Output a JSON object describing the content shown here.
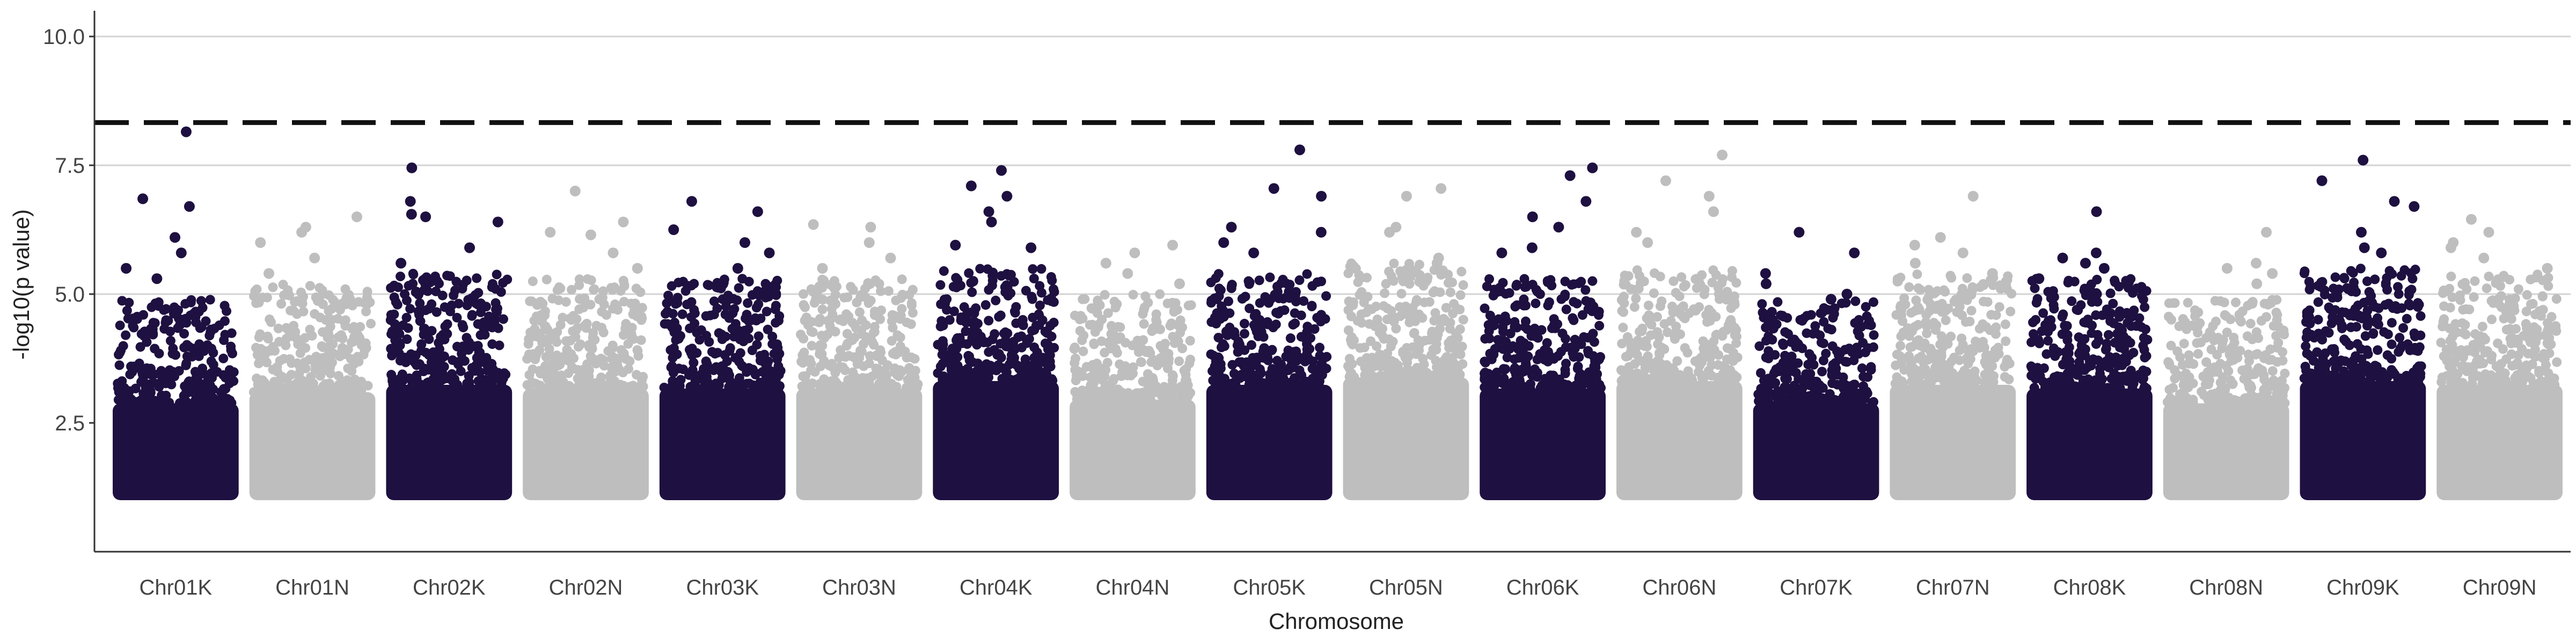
{
  "chart_data": {
    "type": "scatter",
    "subtype": "manhattan",
    "title": "",
    "xlabel": "Chromosome",
    "ylabel": "-log10(p value)",
    "ylim": [
      0.0,
      10.5
    ],
    "yticks": [
      2.5,
      5.0,
      7.5,
      10.0
    ],
    "ytick_labels": [
      "2.5",
      "5.0",
      "7.5",
      "10.0"
    ],
    "grid": "horizontal",
    "threshold": 8.33,
    "colors": {
      "dark": "#1e1040",
      "light": "#bebebe",
      "threshold": "#111111",
      "grid": "#d3d3d3",
      "axis": "#333333"
    },
    "categories": [
      "Chr01K",
      "Chr01N",
      "Chr02K",
      "Chr02N",
      "Chr03K",
      "Chr03N",
      "Chr04K",
      "Chr04N",
      "Chr05K",
      "Chr05N",
      "Chr06K",
      "Chr06N",
      "Chr07K",
      "Chr07N",
      "Chr08K",
      "Chr08N",
      "Chr09K",
      "Chr09N"
    ],
    "series": [
      {
        "name": "Chr01K",
        "color": "dark",
        "dense_top": 4.0,
        "peaks": [
          8.15,
          6.85,
          6.7,
          6.1,
          5.8,
          5.5,
          5.3
        ]
      },
      {
        "name": "Chr01N",
        "color": "light",
        "dense_top": 4.3,
        "peaks": [
          6.5,
          6.3,
          6.2,
          6.0,
          5.7,
          5.4
        ]
      },
      {
        "name": "Chr02K",
        "color": "dark",
        "dense_top": 4.5,
        "peaks": [
          7.45,
          6.8,
          6.55,
          6.5,
          6.4,
          5.9,
          5.6
        ]
      },
      {
        "name": "Chr02N",
        "color": "light",
        "dense_top": 4.4,
        "peaks": [
          7.0,
          6.4,
          6.2,
          6.15,
          5.8,
          5.5
        ]
      },
      {
        "name": "Chr03K",
        "color": "dark",
        "dense_top": 4.4,
        "peaks": [
          6.8,
          6.6,
          6.25,
          6.0,
          5.8,
          5.5
        ]
      },
      {
        "name": "Chr03N",
        "color": "light",
        "dense_top": 4.4,
        "peaks": [
          6.35,
          6.3,
          6.0,
          5.7,
          5.5
        ]
      },
      {
        "name": "Chr04K",
        "color": "dark",
        "dense_top": 4.6,
        "peaks": [
          7.4,
          7.1,
          6.9,
          6.6,
          6.4,
          5.95,
          5.9
        ]
      },
      {
        "name": "Chr04N",
        "color": "light",
        "dense_top": 4.1,
        "peaks": [
          5.95,
          5.8,
          5.6,
          5.4,
          5.2
        ]
      },
      {
        "name": "Chr05K",
        "color": "dark",
        "dense_top": 4.5,
        "peaks": [
          7.8,
          7.05,
          6.9,
          6.3,
          6.2,
          6.0,
          5.8
        ]
      },
      {
        "name": "Chr05N",
        "color": "light",
        "dense_top": 4.7,
        "peaks": [
          7.05,
          6.9,
          6.3,
          6.2,
          5.7,
          5.6
        ]
      },
      {
        "name": "Chr06K",
        "color": "dark",
        "dense_top": 4.4,
        "peaks": [
          7.45,
          7.3,
          6.8,
          6.5,
          6.3,
          5.9,
          5.8
        ]
      },
      {
        "name": "Chr06N",
        "color": "light",
        "dense_top": 4.6,
        "peaks": [
          7.7,
          7.2,
          6.9,
          6.6,
          6.2,
          6.0
        ]
      },
      {
        "name": "Chr07K",
        "color": "dark",
        "dense_top": 4.0,
        "peaks": [
          6.2,
          5.8,
          5.4,
          5.2,
          5.0,
          4.9
        ]
      },
      {
        "name": "Chr07N",
        "color": "light",
        "dense_top": 4.5,
        "peaks": [
          6.9,
          6.1,
          5.95,
          5.8,
          5.6,
          5.4
        ]
      },
      {
        "name": "Chr08K",
        "color": "dark",
        "dense_top": 4.4,
        "peaks": [
          6.6,
          5.8,
          5.7,
          5.6,
          5.5,
          5.3
        ]
      },
      {
        "name": "Chr08N",
        "color": "light",
        "dense_top": 4.0,
        "peaks": [
          6.2,
          5.6,
          5.5,
          5.4,
          5.2
        ]
      },
      {
        "name": "Chr09K",
        "color": "dark",
        "dense_top": 4.6,
        "peaks": [
          7.6,
          7.2,
          6.8,
          6.7,
          6.2,
          5.9,
          5.8
        ]
      },
      {
        "name": "Chr09N",
        "color": "light",
        "dense_top": 4.5,
        "peaks": [
          6.45,
          6.2,
          6.0,
          5.9,
          5.7,
          5.5
        ]
      }
    ]
  }
}
